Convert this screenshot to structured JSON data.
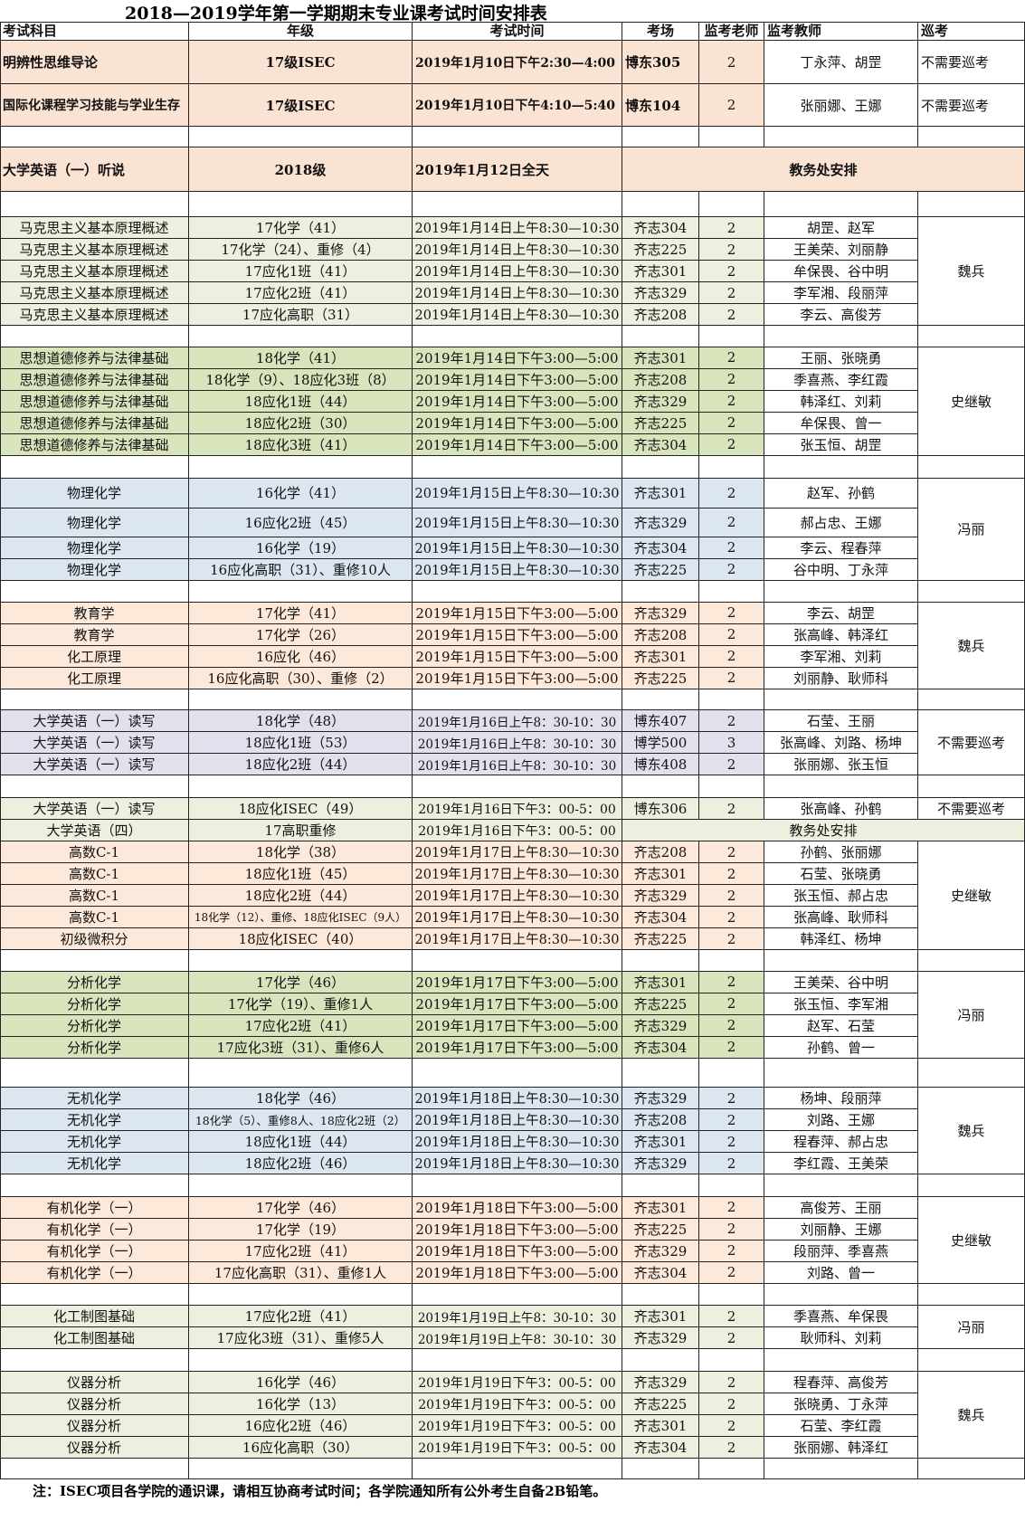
{
  "title": "2018—2019学年第一学期期末专业课考试时间安排表",
  "header": [
    "考试科目",
    "年级",
    "考试时间",
    "考场",
    "监考老师",
    "监考教师",
    "巡考"
  ],
  "blocks": [
    {
      "rows": [
        [
          "明辨性思维导论",
          "17级ISEC",
          "2019年1月10日下午2:30—4:00",
          "博东305",
          "2",
          "丁永萍、胡罡",
          "不需要巡考"
        ],
        [
          "国际化课程学习技能与学业生存",
          "17级ISEC",
          "2019年1月10日下午4:10—5:40",
          "博东104",
          "2",
          "张丽娜、王娜",
          "不需要巡考"
        ]
      ]
    },
    {
      "rows": [
        [
          "大学英语（一）听说",
          "2018级",
          "2019年1月12日全天",
          "教务处安排"
        ]
      ]
    },
    {
      "patrol": "魏兵",
      "rows": [
        [
          "马克思主义基本原理概述",
          "17化学（41）",
          "2019年1月14日上午8:30—10:30",
          "齐志304",
          "2",
          "胡罡、赵军"
        ],
        [
          "马克思主义基本原理概述",
          "17化学（24）、重修（4）",
          "2019年1月14日上午8:30—10:30",
          "齐志225",
          "2",
          "王美荣、刘丽静"
        ],
        [
          "马克思主义基本原理概述",
          "17应化1班（41）",
          "2019年1月14日上午8:30—10:30",
          "齐志301",
          "2",
          "牟保畏、谷中明"
        ],
        [
          "马克思主义基本原理概述",
          "17应化2班（41）",
          "2019年1月14日上午8:30—10:30",
          "齐志329",
          "2",
          "李军湘、段丽萍"
        ],
        [
          "马克思主义基本原理概述",
          "17应化高职（31）",
          "2019年1月14日上午8:30—10:30",
          "齐志208",
          "2",
          "李云、高俊芳"
        ]
      ]
    },
    {
      "patrol": "史继敏",
      "rows": [
        [
          "思想道德修养与法律基础",
          "18化学（41）",
          "2019年1月14日下午3:00—5:00",
          "齐志301",
          "2",
          "王丽、张晓勇"
        ],
        [
          "思想道德修养与法律基础",
          "18化学（9）、18应化3班（8）",
          "2019年1月14日下午3:00—5:00",
          "齐志208",
          "2",
          "季喜燕、李红霞"
        ],
        [
          "思想道德修养与法律基础",
          "18应化1班（44）",
          "2019年1月14日下午3:00—5:00",
          "齐志329",
          "2",
          "韩泽红、刘莉"
        ],
        [
          "思想道德修养与法律基础",
          "18应化2班（30）",
          "2019年1月14日下午3:00—5:00",
          "齐志225",
          "2",
          "牟保畏、曾一"
        ],
        [
          "思想道德修养与法律基础",
          "18应化3班（41）",
          "2019年1月14日下午3:00—5:00",
          "齐志304",
          "2",
          "张玉恒、胡罡"
        ]
      ]
    },
    {
      "patrol": "冯丽",
      "rows": [
        [
          "物理化学",
          "16化学（41）",
          "2019年1月15日上午8:30—10:30",
          "齐志301",
          "2",
          "赵军、孙鹤"
        ],
        [
          "物理化学",
          "16应化2班（45）",
          "2019年1月15日上午8:30—10:30",
          "齐志329",
          "2",
          "郝占忠、王娜"
        ],
        [
          "物理化学",
          "16化学（19）",
          "2019年1月15日上午8:30—10:30",
          "齐志304",
          "2",
          "李云、程春萍"
        ],
        [
          "物理化学",
          "16应化高职（31）、重修10人",
          "2019年1月15日上午8:30—10:30",
          "齐志225",
          "2",
          "谷中明、丁永萍"
        ]
      ]
    },
    {
      "patrol": "魏兵",
      "rows": [
        [
          "教育学",
          "17化学（41）",
          "2019年1月15日下午3:00—5:00",
          "齐志329",
          "2",
          "李云、胡罡"
        ],
        [
          "教育学",
          "17化学（26）",
          "2019年1月15日下午3:00—5:00",
          "齐志208",
          "2",
          "张高峰、韩泽红"
        ],
        [
          "化工原理",
          "16应化（46）",
          "2019年1月15日下午3:00—5:00",
          "齐志301",
          "2",
          "李军湘、刘莉"
        ],
        [
          "化工原理",
          "16应化高职（30）、重修（2）",
          "2019年1月15日下午3:00—5:00",
          "齐志225",
          "2",
          "刘丽静、耿师科"
        ]
      ]
    },
    {
      "patrol": "不需要巡考",
      "rows": [
        [
          "大学英语（一）读写",
          "18化学（48）",
          "2019年1月16日上午8：30-10：30",
          "博东407",
          "2",
          "石莹、王丽"
        ],
        [
          "大学英语（一）读写",
          "18应化1班（53）",
          "2019年1月16日上午8：30-10：30",
          "博学500",
          "3",
          "张高峰、刘路、杨坤"
        ],
        [
          "大学英语（一）读写",
          "18应化2班（44）",
          "2019年1月16日上午8：30-10：30",
          "博东408",
          "2",
          "张丽娜、张玉恒"
        ]
      ]
    },
    {
      "rows": [
        [
          "大学英语（一）读写",
          "18应化ISEC（49）",
          "2019年1月16日下午3：00-5：00",
          "博东306",
          "2",
          "张高峰、孙鹤",
          "不需要巡考"
        ],
        [
          "大学英语（四）",
          "17高职重修",
          "2019年1月16日下午3：00-5：00",
          "教务处安排"
        ]
      ]
    },
    {
      "patrol": "史继敏",
      "rows": [
        [
          "高数C-1",
          "18化学（38）",
          "2019年1月17日上午8:30—10:30",
          "齐志208",
          "2",
          "孙鹤、张丽娜"
        ],
        [
          "高数C-1",
          "18应化1班（45）",
          "2019年1月17日上午8:30—10:30",
          "齐志301",
          "2",
          "石莹、张晓勇"
        ],
        [
          "高数C-1",
          "18应化2班（44）",
          "2019年1月17日上午8:30—10:30",
          "齐志329",
          "2",
          "张玉恒、郝占忠"
        ],
        [
          "高数C-1",
          "18化学（12）、重修、18应化ISEC（9人）",
          "2019年1月17日上午8:30—10:30",
          "齐志304",
          "2",
          "张高峰、耿师科"
        ],
        [
          "初级微积分",
          "18应化ISEC（40）",
          "2019年1月17日上午8:30—10:30",
          "齐志225",
          "2",
          "韩泽红、杨坤"
        ]
      ]
    },
    {
      "patrol": "冯丽",
      "rows": [
        [
          "分析化学",
          "17化学（46）",
          "2019年1月17日下午3:00—5:00",
          "齐志301",
          "2",
          "王美荣、谷中明"
        ],
        [
          "分析化学",
          "17化学（19）、重修1人",
          "2019年1月17日下午3:00—5:00",
          "齐志225",
          "2",
          "张玉恒、李军湘"
        ],
        [
          "分析化学",
          "17应化2班（41）",
          "2019年1月17日下午3:00—5:00",
          "齐志329",
          "2",
          "赵军、石莹"
        ],
        [
          "分析化学",
          "17应化3班（31）、重修6人",
          "2019年1月17日下午3:00—5:00",
          "齐志304",
          "2",
          "孙鹤、曾一"
        ]
      ]
    },
    {
      "patrol": "魏兵",
      "rows": [
        [
          "无机化学",
          "18化学（46）",
          "2019年1月18日上午8:30—10:30",
          "齐志329",
          "2",
          "杨坤、段丽萍"
        ],
        [
          "无机化学",
          "18化学（5）、重修8人、18应化2班（2）",
          "2019年1月18日上午8:30—10:30",
          "齐志208",
          "2",
          "刘路、王娜"
        ],
        [
          "无机化学",
          "18应化1班（44）",
          "2019年1月18日上午8:30—10:30",
          "齐志301",
          "2",
          "程春萍、郝占忠"
        ],
        [
          "无机化学",
          "18应化2班（46）",
          "2019年1月18日上午8:30—10:30",
          "齐志329",
          "2",
          "李红霞、王美荣"
        ]
      ]
    },
    {
      "patrol": "史继敏",
      "rows": [
        [
          "有机化学（一）",
          "17化学（46）",
          "2019年1月18日下午3:00—5:00",
          "齐志301",
          "2",
          "高俊芳、王丽"
        ],
        [
          "有机化学（一）",
          "17化学（19）",
          "2019年1月18日下午3:00—5:00",
          "齐志225",
          "2",
          "刘丽静、王娜"
        ],
        [
          "有机化学（一）",
          "17应化2班（41）",
          "2019年1月18日下午3:00—5:00",
          "齐志329",
          "2",
          "段丽萍、季喜燕"
        ],
        [
          "有机化学（一）",
          "17应化高职（31）、重修1人",
          "2019年1月18日下午3:00—5:00",
          "齐志304",
          "2",
          "刘路、曾一"
        ]
      ]
    },
    {
      "patrol": "冯丽",
      "rows": [
        [
          "化工制图基础",
          "17应化2班（41）",
          "2019年1月19日上午8：30-10：30",
          "齐志301",
          "2",
          "季喜燕、牟保畏"
        ],
        [
          "化工制图基础",
          "17应化3班（31）、重修5人",
          "2019年1月19日上午8：30-10：30",
          "齐志329",
          "2",
          "耿师科、刘莉"
        ]
      ]
    },
    {
      "patrol": "魏兵",
      "rows": [
        [
          "仪器分析",
          "16化学（46）",
          "2019年1月19日下午3：00-5：00",
          "齐志329",
          "2",
          "程春萍、高俊芳"
        ],
        [
          "仪器分析",
          "16化学（13）",
          "2019年1月19日下午3：00-5：00",
          "齐志225",
          "2",
          "张晓勇、丁永萍"
        ],
        [
          "仪器分析",
          "16应化2班（46）",
          "2019年1月19日下午3：00-5：00",
          "齐志301",
          "2",
          "石莹、李红霞"
        ],
        [
          "仪器分析",
          "16应化高职（30）",
          "2019年1月19日下午3：00-5：00",
          "齐志304",
          "2",
          "张丽娜、韩泽红"
        ]
      ]
    }
  ],
  "note": "注：ISEC项目各学院的通识课，请相互协商考试时间；各学院通知所有公外考生自备2B铅笔。"
}
